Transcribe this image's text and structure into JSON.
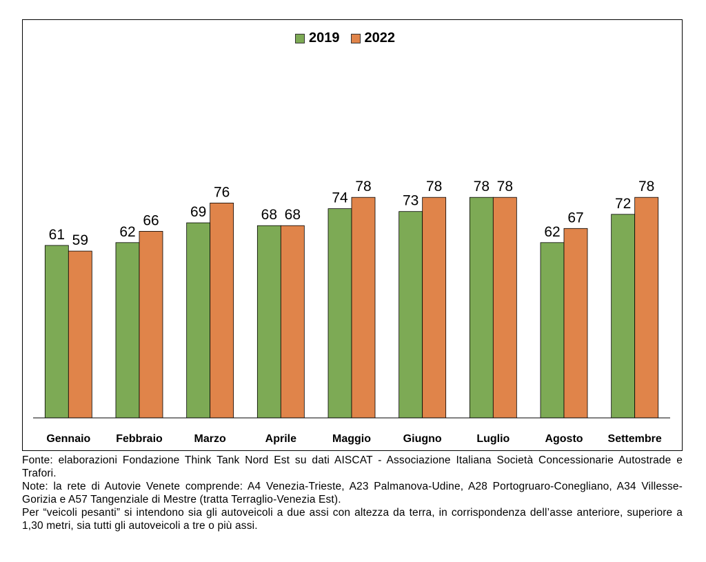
{
  "colors": {
    "series_2019": "#7daa55",
    "series_2022": "#e0844a",
    "axis": "#000000"
  },
  "chart_data": {
    "type": "bar",
    "categories": [
      "Gennaio",
      "Febbraio",
      "Marzo",
      "Aprile",
      "Maggio",
      "Giugno",
      "Luglio",
      "Agosto",
      "Settembre"
    ],
    "series": [
      {
        "name": "2019",
        "values": [
          61,
          62,
          69,
          68,
          74,
          73,
          78,
          62,
          72
        ]
      },
      {
        "name": "2022",
        "values": [
          59,
          66,
          76,
          68,
          78,
          78,
          78,
          67,
          78
        ]
      }
    ],
    "title": "",
    "xlabel": "",
    "ylabel": "",
    "ylim": [
      0,
      80
    ],
    "grid": false,
    "legend_position": "top-center",
    "data_labels": true
  },
  "legend": {
    "label_2019": "2019",
    "label_2022": "2022"
  },
  "footnotes": {
    "source": "Fonte: elaborazioni Fondazione Think Tank Nord Est su dati AISCAT - Associazione Italiana Società Concessionarie Autostrade e Trafori.",
    "note_network": "Note: la rete di Autovie Venete comprende: A4 Venezia-Trieste, A23 Palmanova-Udine, A28 Portogruaro-Conegliano, A34 Villesse-Gorizia e A57 Tangenziale di Mestre (tratta Terraglio-Venezia Est).",
    "note_heavy": "Per “veicoli pesanti” si intendono sia gli autoveicoli a due assi con altezza da terra, in corrispondenza dell’asse anteriore, superiore a 1,30 metri, sia tutti gli autoveicoli a tre o più assi."
  }
}
